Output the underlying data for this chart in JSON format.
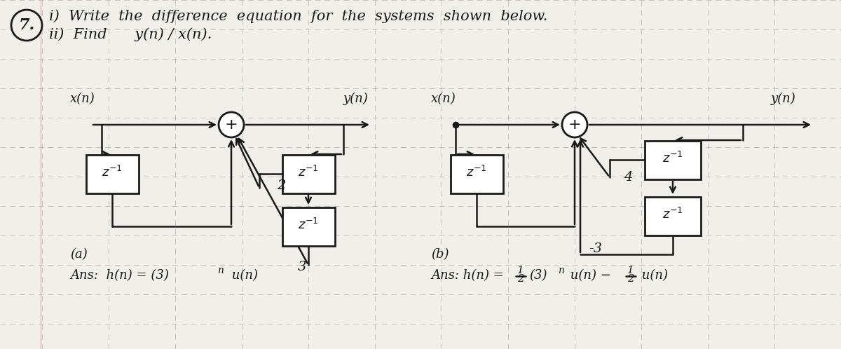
{
  "bg_color": "#e8e8e3",
  "paper_color": "#f0efea",
  "line_color": "#1a1a1a",
  "grid_color": "#b0b0b0",
  "title_line1": "7.  i) Write the difference equation for the systems shown below.",
  "title_line2": "     ii) Find    y(n) / x(n).",
  "diag_a_label": "(a)",
  "diag_a_ans": "Ans:  h(n) = (3)  u(n)",
  "diag_b_label": "(b)",
  "diag_b_ans": "Ans: h(n) = 1/2 (3)  u(n) - 1/2 u(n)",
  "figsize": [
    12.0,
    4.98
  ],
  "dpi": 100
}
